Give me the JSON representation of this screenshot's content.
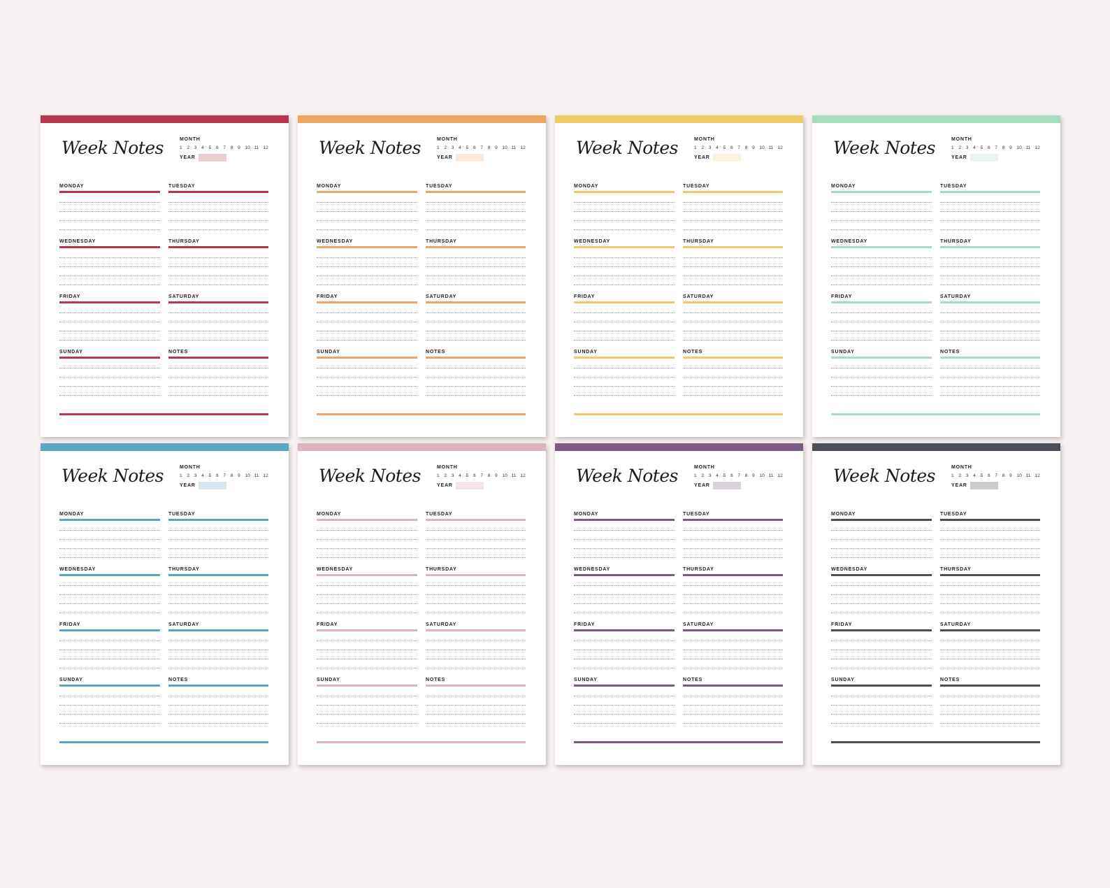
{
  "sheet_title": "Week Notes",
  "month_label": "MONTH",
  "year_label": "YEAR",
  "month_numbers": [
    "1",
    "2",
    "3",
    "4",
    "5",
    "6",
    "7",
    "8",
    "9",
    "10",
    "11",
    "12"
  ],
  "days": [
    "MONDAY",
    "TUESDAY",
    "WEDNESDAY",
    "THURSDAY",
    "FRIDAY",
    "SATURDAY",
    "SUNDAY",
    "NOTES"
  ],
  "sheets": [
    {
      "color": "#b8354d",
      "year_fill": "#e9cfcf"
    },
    {
      "color": "#e9a665",
      "year_fill": "#fbeadb"
    },
    {
      "color": "#efcb6a",
      "year_fill": "#fbf1dc"
    },
    {
      "color": "#a8dcbe",
      "year_fill": "#ebf5ef"
    },
    {
      "color": "#5aa6c0",
      "year_fill": "#d9e6ee"
    },
    {
      "color": "#dcb4bc",
      "year_fill": "#f4e6e8"
    },
    {
      "color": "#7a5a80",
      "year_fill": "#ddd1dc"
    },
    {
      "color": "#4c4e58",
      "year_fill": "#cccccc"
    }
  ]
}
